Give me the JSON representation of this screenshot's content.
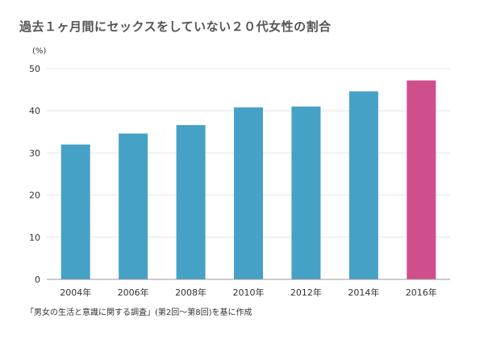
{
  "title": "過去１ヶ月間にセックスをしていない２０代女性の割合",
  "source": "「男女の生活と意識に関する調査」(第2回〜第8回)を基に作成",
  "chart_data": {
    "type": "bar",
    "title": "過去１ヶ月間にセックスをしていない２０代女性の割合",
    "xlabel": "",
    "ylabel": "(%)",
    "ylim": [
      0,
      50
    ],
    "yticks": [
      0,
      10,
      20,
      30,
      40,
      50
    ],
    "grid": true,
    "categories": [
      "2004年",
      "2006年",
      "2008年",
      "2010年",
      "2012年",
      "2014年",
      "2016年"
    ],
    "values": [
      32,
      34.6,
      36.6,
      40.8,
      41,
      44.6,
      47.2
    ],
    "bar_colors": [
      "#45a1c5",
      "#45a1c5",
      "#45a1c5",
      "#45a1c5",
      "#45a1c5",
      "#45a1c5",
      "#cf4f8c"
    ],
    "colors": {
      "default_bar": "#45a1c5",
      "highlight_bar": "#cf4f8c"
    }
  }
}
